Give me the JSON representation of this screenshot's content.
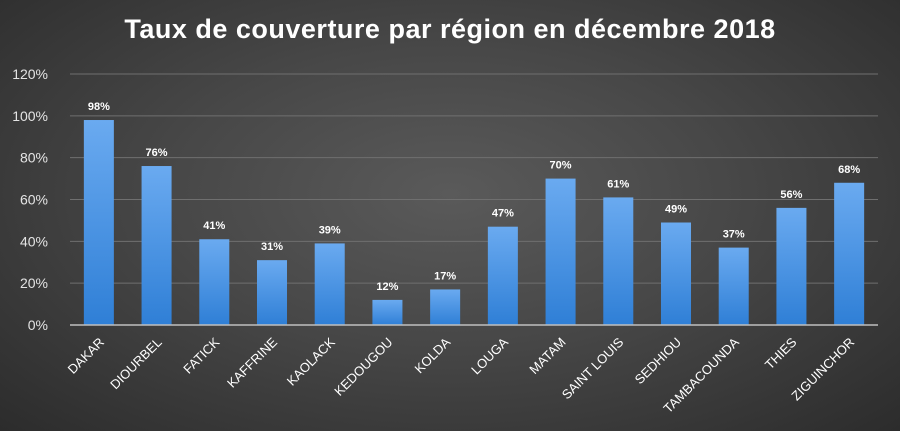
{
  "chart_data": {
    "type": "bar",
    "title": "Taux de couverture par région en décembre 2018",
    "xlabel": "",
    "ylabel": "",
    "ylim": [
      0,
      120
    ],
    "y_ticks": [
      "0%",
      "20%",
      "40%",
      "60%",
      "80%",
      "100%",
      "120%"
    ],
    "y_tick_values": [
      0,
      20,
      40,
      60,
      80,
      100,
      120
    ],
    "categories": [
      "DAKAR",
      "DIOURBEL",
      "FATICK",
      "KAFFRINE",
      "KAOLACK",
      "KEDOUGOU",
      "KOLDA",
      "LOUGA",
      "MATAM",
      "SAINT LOUIS",
      "SEDHIOU",
      "TAMBACOUNDA",
      "THIES",
      "ZIGUINCHOR"
    ],
    "values": [
      98,
      76,
      41,
      31,
      39,
      12,
      17,
      47,
      70,
      61,
      49,
      37,
      56,
      68
    ],
    "data_labels": [
      "98%",
      "76%",
      "41%",
      "31%",
      "39%",
      "12%",
      "17%",
      "47%",
      "70%",
      "61%",
      "49%",
      "37%",
      "56%",
      "68%"
    ],
    "grid": true,
    "legend": "none",
    "colors": {
      "bar_top": "#6aaaf0",
      "bar_bottom": "#2f7fd6",
      "grid": "#6f6f6f",
      "axis": "#bfbfbf"
    }
  }
}
